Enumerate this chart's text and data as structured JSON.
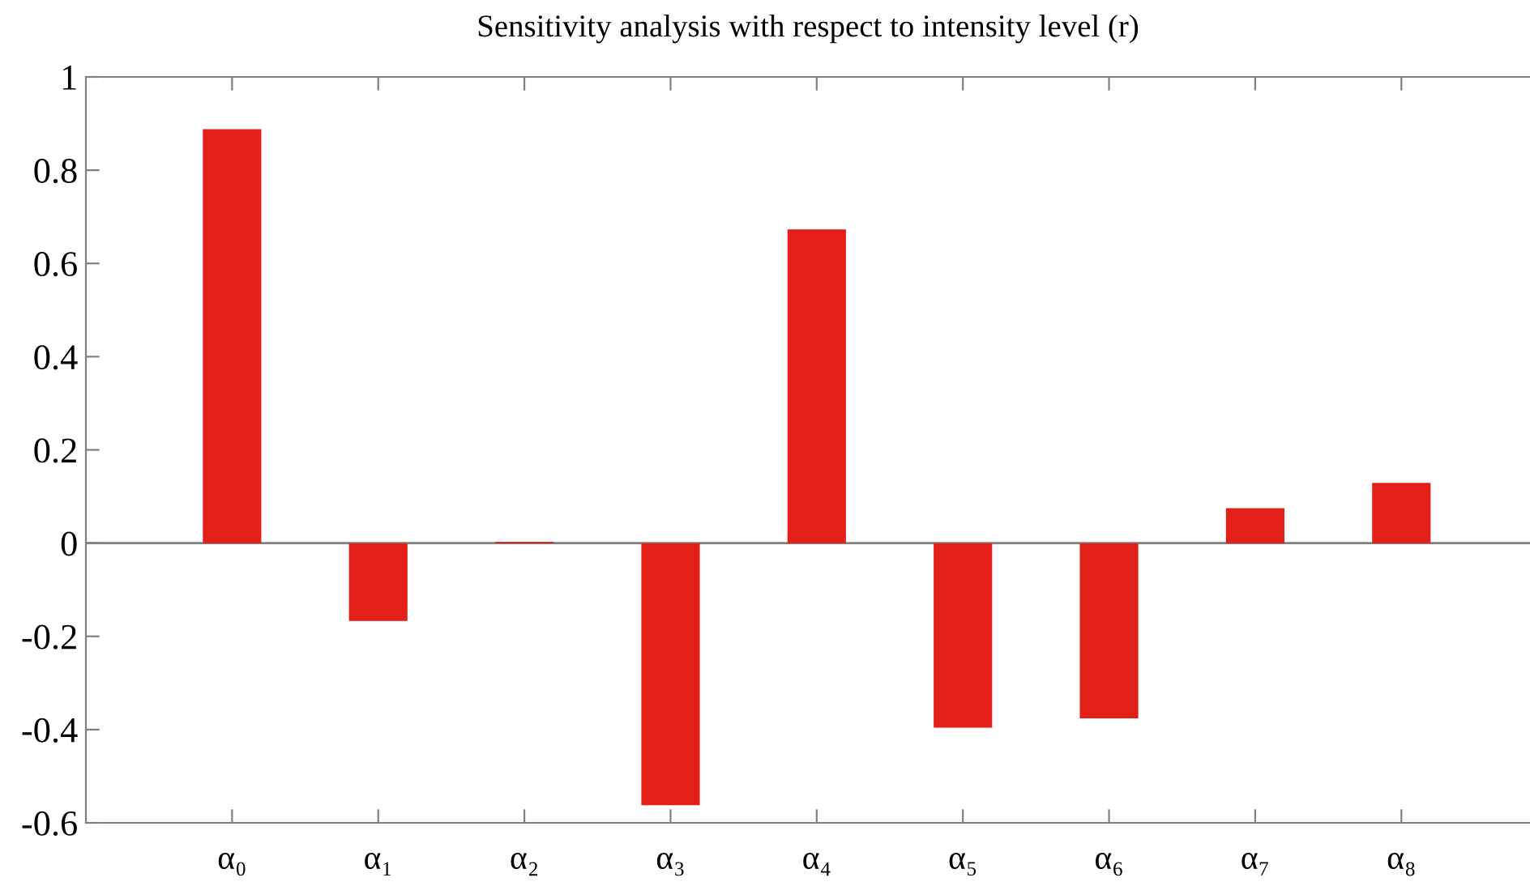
{
  "chart_data": {
    "type": "bar",
    "title": "Sensitivity analysis with respect to intensity level (r)",
    "categories": [
      "α₀",
      "α₁",
      "α₂",
      "α₃",
      "α₄",
      "α₅",
      "α₆",
      "α₇",
      "α₈"
    ],
    "values": [
      0.888,
      -0.167,
      0.003,
      -0.562,
      0.673,
      -0.396,
      -0.376,
      0.075,
      0.129
    ],
    "color": "#e31f1a",
    "ylim": [
      -0.6,
      1
    ],
    "yticks": [
      -0.6,
      -0.4,
      -0.2,
      0,
      0.2,
      0.4,
      0.6,
      0.8,
      1
    ],
    "ref_lines": [
      {
        "axis": "y",
        "value": 0,
        "color": "#808080"
      }
    ],
    "legend": false
  }
}
